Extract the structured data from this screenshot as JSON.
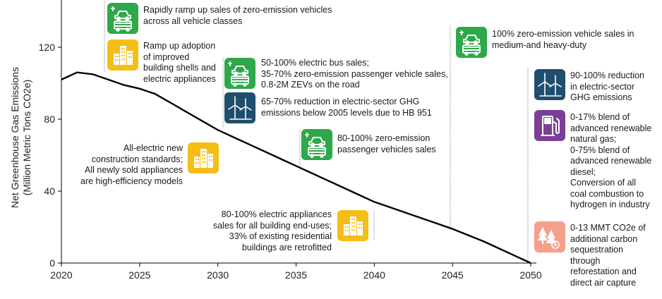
{
  "chart_data": {
    "type": "line",
    "title": "",
    "ylabel": "Net Greenhouse Gas  Emissions",
    "ylabel_units": "(Million Metric Tons CO2e)",
    "xlabel": "",
    "xlim": [
      2020,
      2050
    ],
    "ylim": [
      0,
      140
    ],
    "x_ticks": [
      "2020",
      "2025",
      "2030",
      "2035",
      "2040",
      "2045",
      "2050"
    ],
    "y_ticks": [
      "0",
      "40",
      "80",
      "120"
    ],
    "grid": false,
    "series": [
      {
        "x": [
          2020,
          2021,
          2022,
          2023,
          2024,
          2025,
          2026,
          2027,
          2028,
          2029,
          2030,
          2031,
          2032,
          2033,
          2034,
          2035,
          2036,
          2037,
          2038,
          2039,
          2040,
          2041,
          2042,
          2043,
          2044,
          2045,
          2046,
          2047,
          2048,
          2049,
          2050
        ],
        "values": [
          102,
          106,
          105,
          102,
          99,
          97,
          94,
          89,
          84,
          79,
          74,
          70,
          66,
          62,
          58,
          54,
          50,
          46,
          42,
          38,
          34,
          31,
          28,
          25,
          22,
          19,
          15.5,
          12,
          8,
          4,
          0
        ]
      }
    ],
    "color": "#000000"
  },
  "colors": {
    "green": "#2EA84A",
    "yellow": "#F5BE16",
    "navy": "#1F4E6E",
    "purple": "#7B3F98",
    "salmon": "#F4A08C"
  },
  "annotations": [
    {
      "key": "a2023",
      "icon": "vehicle-car-bus-icon",
      "color": "green",
      "lines": [
        "Rapidly ramp up sales of zero-emission vehicles",
        "across all vehicle classes"
      ]
    },
    {
      "key": "a2023b",
      "icon": "buildings-icon",
      "color": "yellow",
      "lines": [
        "Ramp up adoption",
        "of improved",
        "building shells and",
        "electric appliances"
      ]
    },
    {
      "key": "a2030",
      "icon": "vehicle-car-bus-icon",
      "color": "green",
      "lines": [
        "50-100% electric bus sales;",
        "35-70% zero-emission passenger vehicle sales,",
        "0.8-2M ZEVs on the road"
      ]
    },
    {
      "key": "a2030b",
      "icon": "wind-turbine-icon",
      "color": "navy",
      "lines": [
        "65-70% reduction in electric-sector GHG",
        "emissions below 2005 levels due to HB 951"
      ]
    },
    {
      "key": "a2030c",
      "icon": "buildings-icon",
      "color": "yellow",
      "lines": [
        "All-electric new",
        "construction standards;",
        "All newly sold appliances",
        "are high-efficiency models"
      ]
    },
    {
      "key": "a2035",
      "icon": "vehicle-car-bus-icon",
      "color": "green",
      "lines": [
        "80-100% zero-emission",
        "passenger vehicles sales"
      ]
    },
    {
      "key": "a2040",
      "icon": "buildings-icon",
      "color": "yellow",
      "lines": [
        "80-100% electric appliances",
        "sales for all building end-uses;",
        "33% of existing residential",
        "buildings are retrofitted"
      ]
    },
    {
      "key": "a2045",
      "icon": "vehicle-car-bus-icon",
      "color": "green",
      "lines": [
        "100% zero-emission vehicle sales in",
        "medium-and heavy-duty"
      ]
    },
    {
      "key": "a2050a",
      "icon": "wind-turbine-icon",
      "color": "navy",
      "lines": [
        "90-100% reduction",
        "in electric-sector",
        "GHG emissions"
      ]
    },
    {
      "key": "a2050b",
      "icon": "fuel-pump-icon",
      "color": "purple",
      "lines": [
        "0-17% blend of",
        "advanced renewable",
        "natural gas;",
        "0-75% blend of",
        "advanced renewable",
        "diesel;",
        "Conversion of all",
        "coal combustion to",
        "hydrogen in industry"
      ]
    },
    {
      "key": "a2050c",
      "icon": "forest-capture-icon",
      "color": "salmon",
      "lines": [
        "0-13 MMT CO2e of",
        "additional carbon",
        "sequestration",
        "through",
        "reforestation and",
        "direct air capture"
      ]
    }
  ]
}
